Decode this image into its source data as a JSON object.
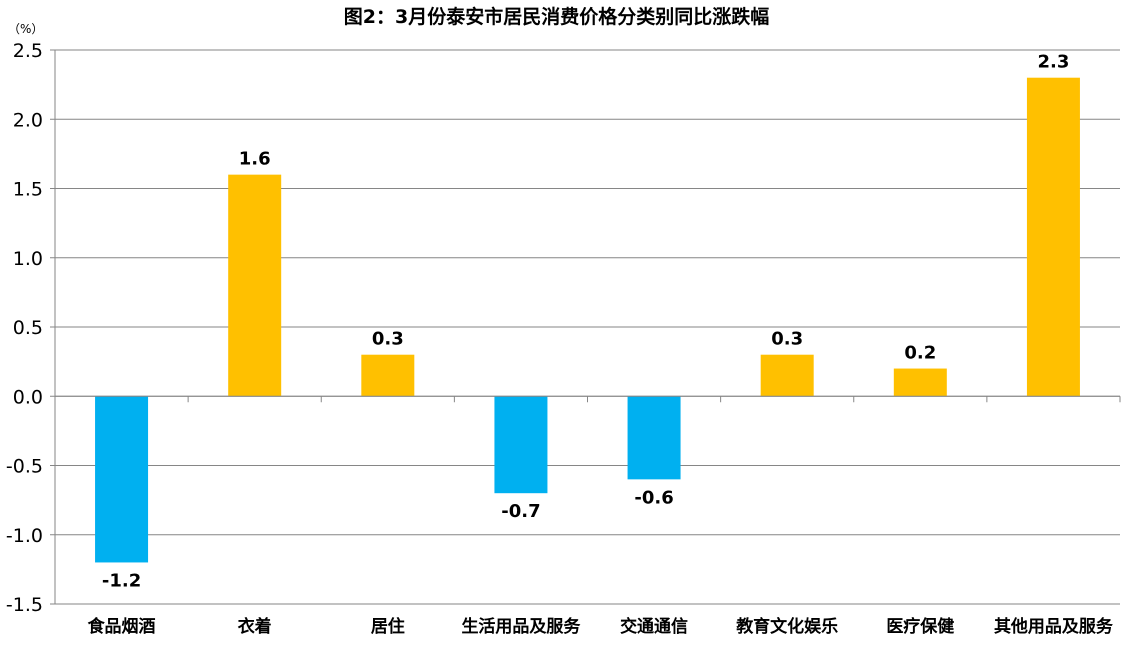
{
  "chart_data": {
    "type": "bar",
    "title": "图2：3月份泰安市居民消费价格分类别同比涨跌幅",
    "unit": "（%）",
    "categories": [
      "食品烟酒",
      "衣着",
      "居住",
      "生活用品及服务",
      "交通通信",
      "教育文化娱乐",
      "医疗保健",
      "其他用品及服务"
    ],
    "values": [
      -1.2,
      1.6,
      0.3,
      -0.7,
      -0.6,
      0.3,
      0.2,
      2.3
    ],
    "value_labels": [
      "-1.2",
      "1.6",
      "0.3",
      "-0.7",
      "-0.6",
      "0.3",
      "0.2",
      "2.3"
    ],
    "ylim": [
      -1.5,
      2.5
    ],
    "yticks": [
      "2.5",
      "2.0",
      "1.5",
      "1.0",
      "0.5",
      "0.0",
      "-0.5",
      "-1.0",
      "-1.5"
    ],
    "grid": true,
    "colors": {
      "positive": "#FFC000",
      "negative": "#00B0F0",
      "grid": "#868686"
    }
  }
}
